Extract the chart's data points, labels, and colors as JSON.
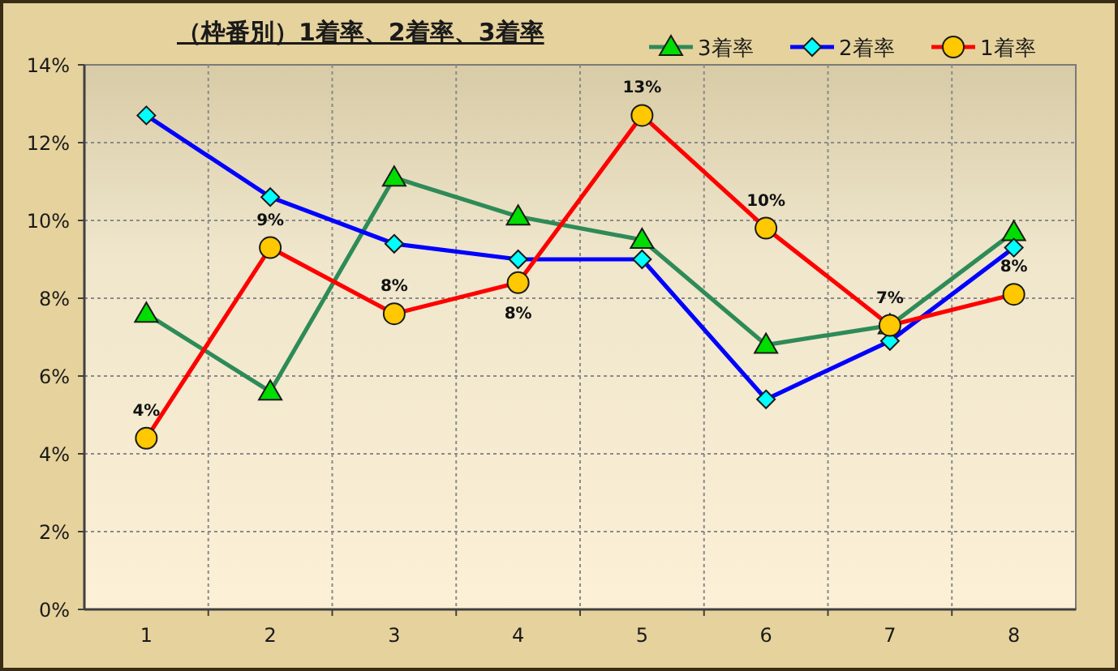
{
  "chart_data": {
    "type": "line",
    "title": "（枠番別）1着率、2着率、3着率",
    "categories": [
      "1",
      "2",
      "3",
      "4",
      "5",
      "6",
      "7",
      "8"
    ],
    "series": [
      {
        "name": "3着率",
        "color": "#2e8b57",
        "marker": "triangle",
        "values": [
          7.6,
          5.6,
          11.1,
          10.1,
          9.5,
          6.8,
          7.3,
          9.7
        ]
      },
      {
        "name": "2着率",
        "color": "#0000ff",
        "marker": "diamond",
        "values": [
          12.7,
          10.6,
          9.4,
          9.0,
          9.0,
          5.4,
          6.9,
          9.3
        ]
      },
      {
        "name": "1着率",
        "color": "#ff0000",
        "marker": "circle",
        "values": [
          4.4,
          9.3,
          7.6,
          8.4,
          12.7,
          9.8,
          7.3,
          8.1
        ],
        "value_labels": [
          "4%",
          "9%",
          "8%",
          "8%",
          "13%",
          "10%",
          "7%",
          "8%"
        ]
      }
    ],
    "ylim": [
      0,
      14
    ],
    "yticks": [
      {
        "value": 0,
        "label": "0%"
      },
      {
        "value": 2,
        "label": "2%"
      },
      {
        "value": 4,
        "label": "4%"
      },
      {
        "value": 6,
        "label": "6%"
      },
      {
        "value": 8,
        "label": "8%"
      },
      {
        "value": 10,
        "label": "10%"
      },
      {
        "value": 12,
        "label": "12%"
      },
      {
        "value": 14,
        "label": "14%"
      }
    ],
    "grid": true,
    "legend": "top right"
  }
}
